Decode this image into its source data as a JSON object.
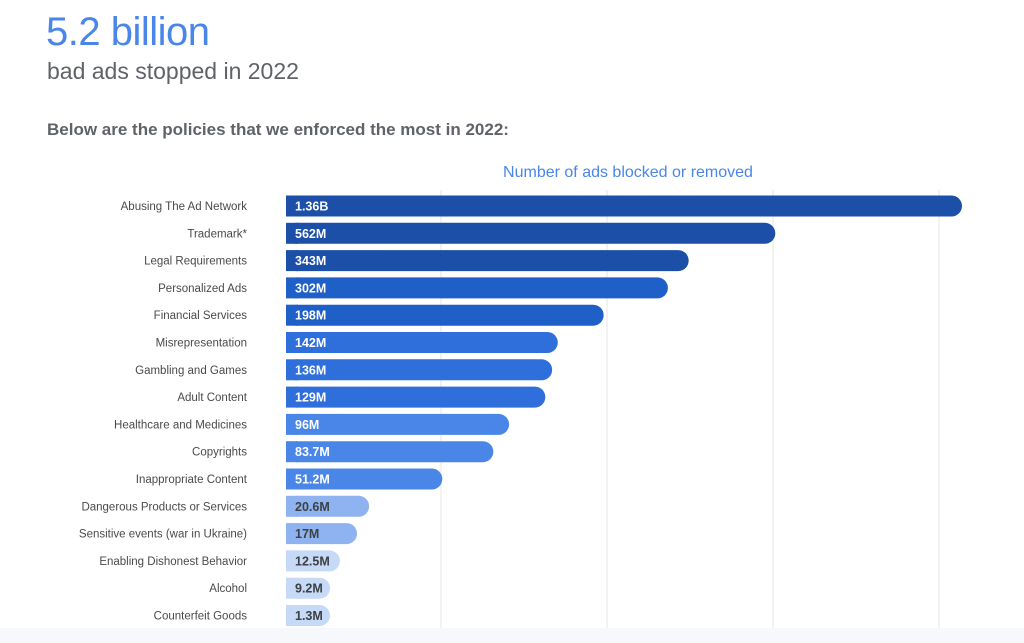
{
  "headline": "5.2 billion",
  "subheadline": "bad ads stopped in 2022",
  "intro": "Below are the policies that we enforced the most in 2022:",
  "chart_data": {
    "type": "bar",
    "orientation": "horizontal",
    "title": "Number of ads blocked or removed",
    "xlabel": "",
    "ylabel": "",
    "grid": true,
    "categories": [
      "Abusing The Ad Network",
      "Trademark*",
      "Legal Requirements",
      "Personalized Ads",
      "Financial Services",
      "Misrepresentation",
      "Gambling and Games",
      "Adult Content",
      "Healthcare and Medicines",
      "Copyrights",
      "Inappropriate Content",
      "Dangerous Products or Services",
      "Sensitive events (war in Ukraine)",
      "Enabling Dishonest Behavior",
      "Alcohol",
      "Counterfeit Goods"
    ],
    "values": [
      1360,
      562,
      343,
      302,
      198,
      142,
      136,
      129,
      96,
      83.7,
      51.2,
      20.6,
      17,
      12.5,
      9.2,
      1.3
    ],
    "value_unit": "M",
    "value_labels": [
      "1.36B",
      "562M",
      "343M",
      "302M",
      "198M",
      "142M",
      "136M",
      "129M",
      "96M",
      "83.7M",
      "51.2M",
      "20.6M",
      "17M",
      "12.5M",
      "9.2M",
      "1.3M"
    ],
    "colors": {
      "darkest": "#1b4fa8",
      "dark": "#1f5fc8",
      "medium": "#2e6fdb",
      "bright": "#4a86e8",
      "light": "#8fb3f0",
      "pale": "#c6d9f7",
      "label_light": "#ffffff",
      "label_dark": "#3c4043"
    },
    "bar_color_keys": [
      "darkest",
      "darkest",
      "darkest",
      "dark",
      "dark",
      "medium",
      "medium",
      "medium",
      "bright",
      "bright",
      "bright",
      "light",
      "light",
      "pale",
      "pale",
      "pale"
    ]
  }
}
